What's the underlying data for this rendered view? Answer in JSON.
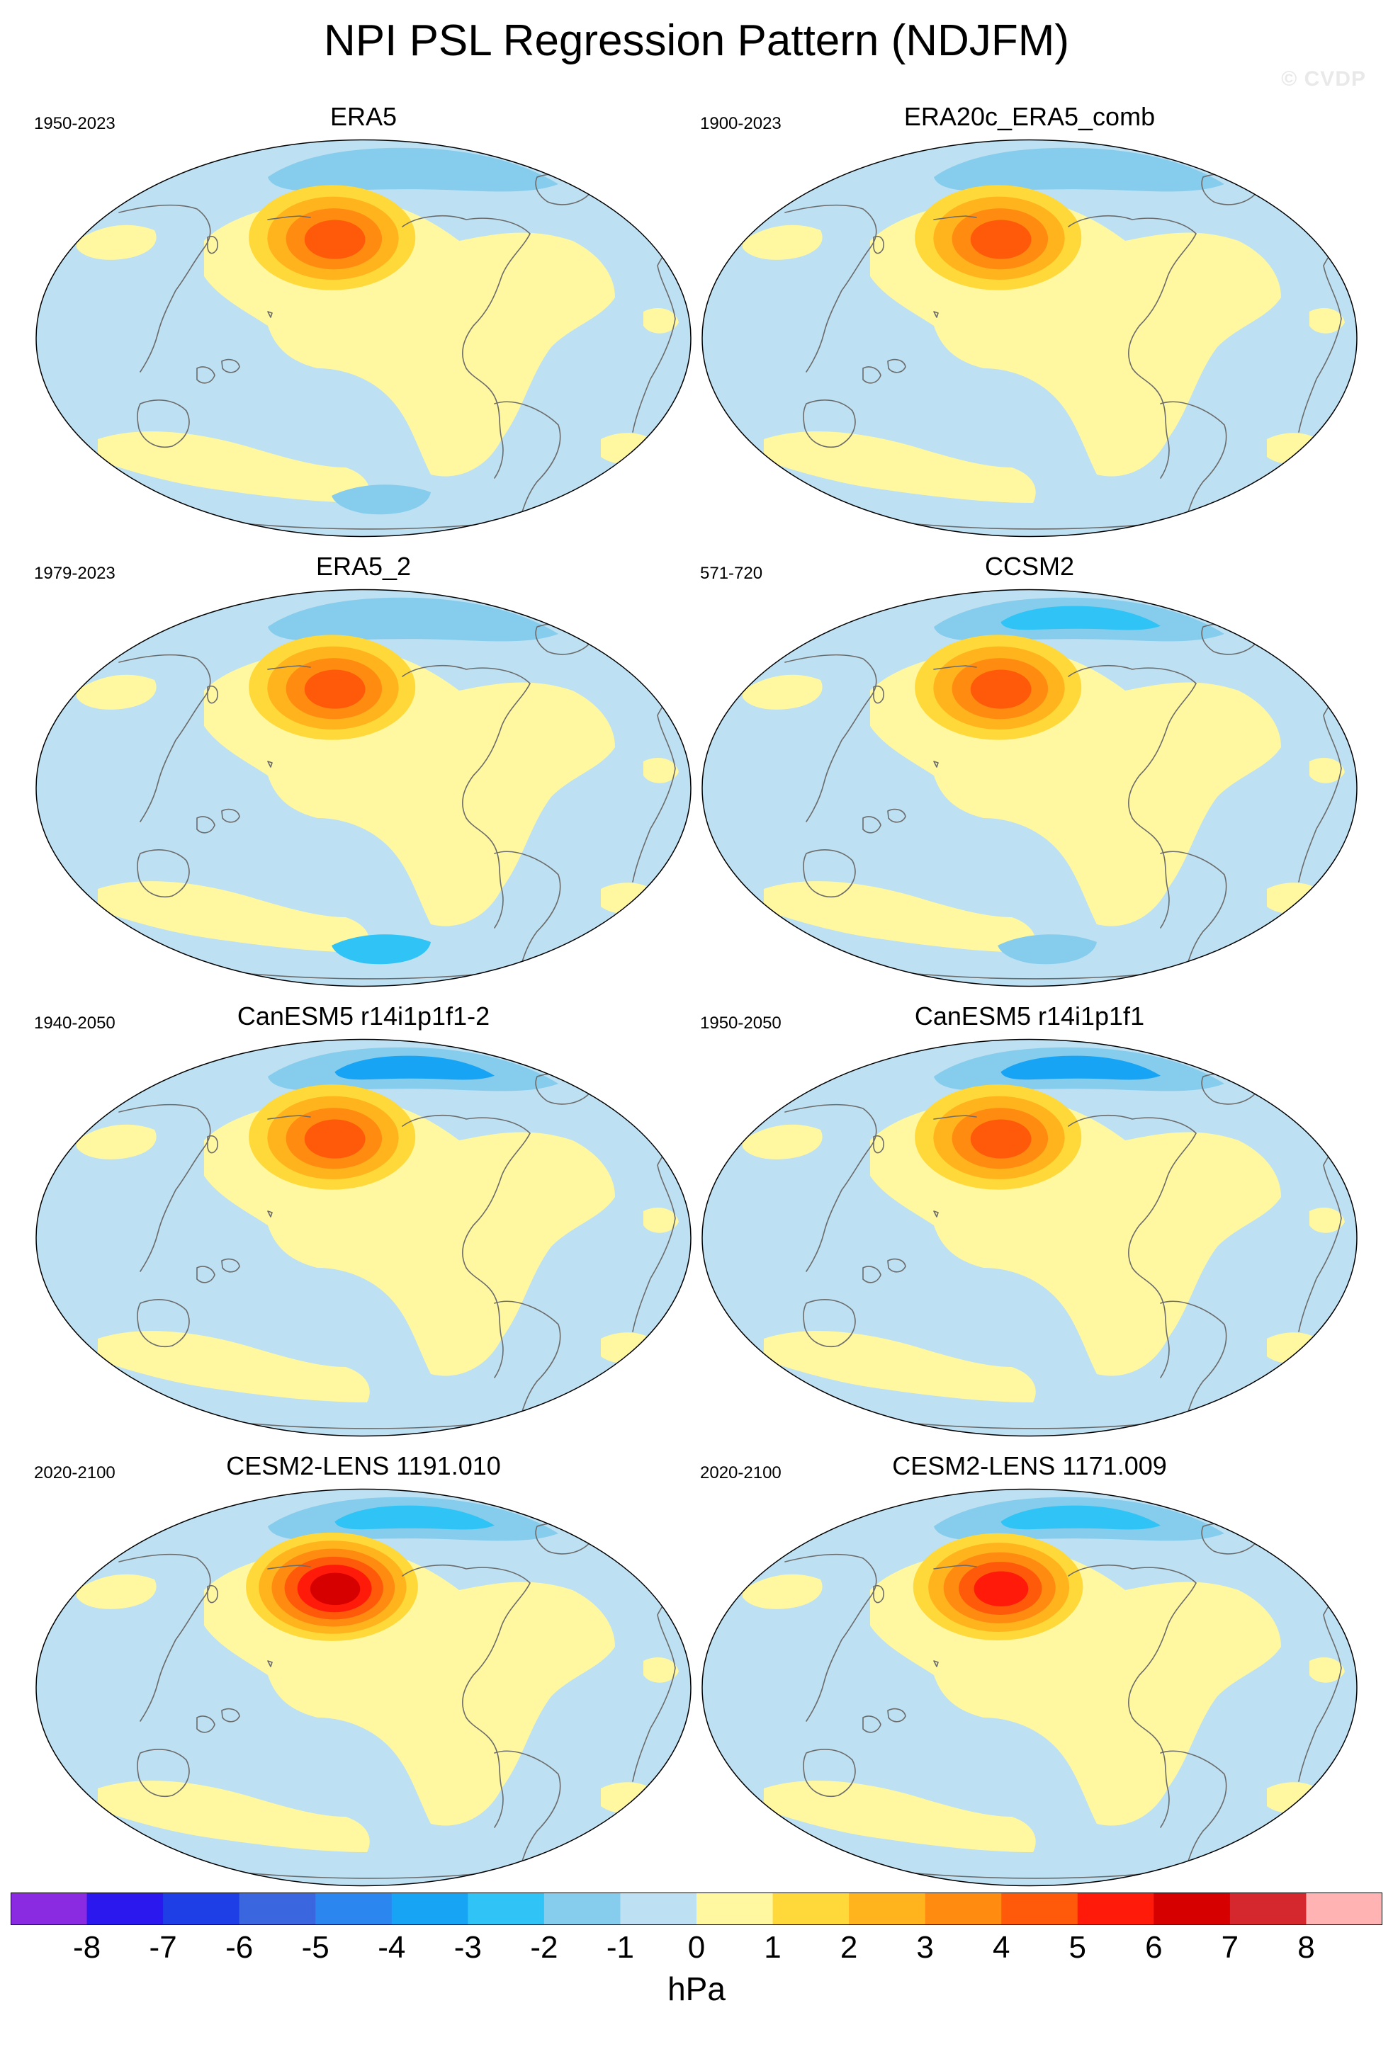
{
  "title": "NPI PSL Regression Pattern (NDJFM)",
  "watermark": "© CVDP",
  "colors": {
    "ocean_fill": "#bde0f2",
    "pos_fill": "#fff8a0",
    "coast": "#6b6b6b",
    "levels": {
      "lt_-8": "#8a2be2",
      "-8_-7": "#2b18ee",
      "-7_-6": "#1f3fe6",
      "-6_-5": "#3a66e0",
      "-5_-4": "#2b86f0",
      "-4_-3": "#17a4f5",
      "-3_-2": "#2fc4f5",
      "-2_-1": "#86ccec",
      "-1_0": "#bde0f2",
      "0_1": "#fff8a0",
      "1_2": "#ffd83a",
      "2_3": "#ffb41e",
      "3_4": "#ff8c11",
      "4_5": "#ff5a0a",
      "5_6": "#ff1a0a",
      "6_7": "#d60000",
      "7_8": "#d4282e",
      "gt_8": "#ffb3b3"
    }
  },
  "panels": [
    {
      "title": "ERA5",
      "years": "1950-2023",
      "peak_hpa": 4.4,
      "arctic_neg_hpa": -2.0,
      "southern_neg_hpa": -2.0
    },
    {
      "title": "ERA20c_ERA5_comb",
      "years": "1900-2023",
      "peak_hpa": 4.3,
      "arctic_neg_hpa": -1.5,
      "southern_neg_hpa": null
    },
    {
      "title": "ERA5_2",
      "years": "1979-2023",
      "peak_hpa": 4.5,
      "arctic_neg_hpa": -1.0,
      "southern_neg_hpa": -2.5
    },
    {
      "title": "CCSM2",
      "years": "571-720",
      "peak_hpa": 4.7,
      "arctic_neg_hpa": -2.5,
      "southern_neg_hpa": -2.0
    },
    {
      "title": "CanESM5 r14i1p1f1-2",
      "years": "1940-2050",
      "peak_hpa": 4.6,
      "arctic_neg_hpa": -3.5,
      "southern_neg_hpa": null
    },
    {
      "title": "CanESM5 r14i1p1f1",
      "years": "1950-2050",
      "peak_hpa": 4.5,
      "arctic_neg_hpa": -3.5,
      "southern_neg_hpa": null
    },
    {
      "title": "CESM2-LENS 1191.010",
      "years": "2020-2100",
      "peak_hpa": 6.2,
      "arctic_neg_hpa": -3.0,
      "southern_neg_hpa": null
    },
    {
      "title": "CESM2-LENS 1171.009",
      "years": "2020-2100",
      "peak_hpa": 5.6,
      "arctic_neg_hpa": -3.0,
      "southern_neg_hpa": null
    }
  ],
  "colorbar": {
    "labels": [
      "-8",
      "-7",
      "-6",
      "-5",
      "-4",
      "-3",
      "-2",
      "-1",
      "0",
      "1",
      "2",
      "3",
      "4",
      "5",
      "6",
      "7",
      "8"
    ],
    "units": "hPa"
  }
}
